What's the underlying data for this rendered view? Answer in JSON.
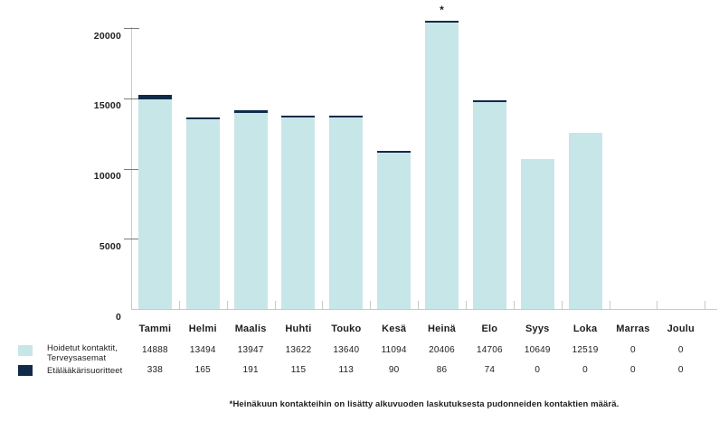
{
  "chart_data": {
    "type": "bar",
    "stacked": true,
    "title": "",
    "xlabel": "",
    "ylabel": "",
    "categories": [
      "Tammi",
      "Helmi",
      "Maalis",
      "Huhti",
      "Touko",
      "Kesä",
      "Heinä",
      "Elo",
      "Syys",
      "Loka",
      "Marras",
      "Joulu"
    ],
    "series": [
      {
        "name": "Hoidetut kontaktit, Terveysasemat",
        "label_lines": [
          "Hoidetut kontaktit,",
          "Terveysasemat"
        ],
        "color": "#c7e6e8",
        "values": [
          14888,
          13494,
          13947,
          13622,
          13640,
          11094,
          20406,
          14706,
          10649,
          12519,
          0,
          0
        ]
      },
      {
        "name": "Etälääkärisuoritteet",
        "label_lines": [
          "Etälääkärisuoritteet"
        ],
        "color": "#112a49",
        "values": [
          338,
          165,
          191,
          115,
          113,
          90,
          86,
          74,
          0,
          0,
          0,
          0
        ]
      }
    ],
    "yticks": [
      0,
      5000,
      10000,
      15000,
      20000
    ],
    "ylim": [
      0,
      21000
    ],
    "grid": false,
    "legend_position": "bottom-left",
    "annotation": {
      "symbol": "*",
      "category": "Heinä"
    },
    "footnote": "*Heinäkuun kontakteihin on lisätty alkuvuoden laskutuksesta pudonneiden kontaktien määrä."
  },
  "colors": {
    "bar_primary": "#c7e6e8",
    "bar_secondary": "#112a49",
    "axis_line": "#c9c9c9",
    "tick": "#7a7a7a",
    "text": "#1e1e1e"
  }
}
